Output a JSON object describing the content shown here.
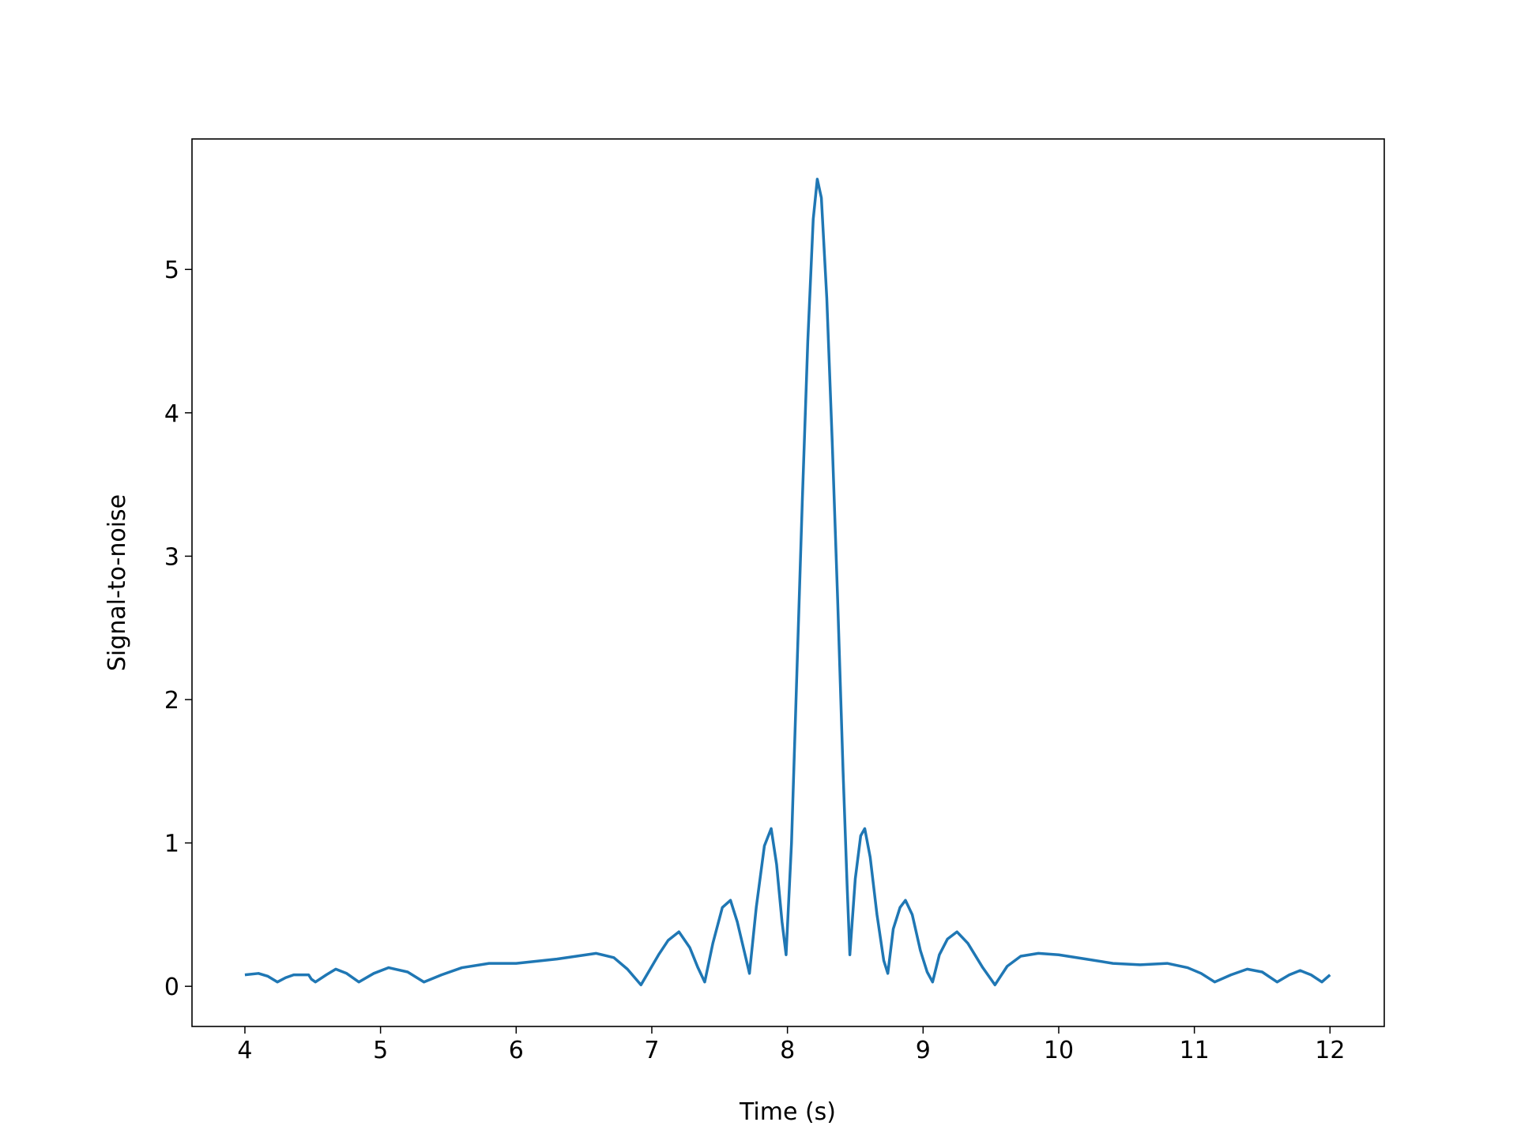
{
  "chart_data": {
    "type": "line",
    "xlabel": "Time (s)",
    "ylabel": "Signal-to-noise",
    "x": [
      4.0,
      4.1,
      4.17,
      4.24,
      4.3,
      4.36,
      4.47,
      4.49,
      4.52,
      4.6,
      4.67,
      4.75,
      4.84,
      4.95,
      5.06,
      5.2,
      5.32,
      5.45,
      5.6,
      5.8,
      6.0,
      6.3,
      6.59,
      6.72,
      6.82,
      6.92,
      7.05,
      7.12,
      7.2,
      7.28,
      7.34,
      7.39,
      7.45,
      7.52,
      7.58,
      7.63,
      7.68,
      7.72,
      7.77,
      7.83,
      7.88,
      7.92,
      7.96,
      7.99,
      8.03,
      8.07,
      8.11,
      8.15,
      8.19,
      8.22,
      8.25,
      8.29,
      8.33,
      8.37,
      8.41,
      8.44,
      8.46,
      8.5,
      8.54,
      8.57,
      8.61,
      8.66,
      8.71,
      8.74,
      8.78,
      8.83,
      8.87,
      8.92,
      8.98,
      9.03,
      9.07,
      9.12,
      9.18,
      9.25,
      9.33,
      9.44,
      9.53,
      9.62,
      9.72,
      9.85,
      10.0,
      10.2,
      10.4,
      10.6,
      10.8,
      10.95,
      11.05,
      11.15,
      11.27,
      11.39,
      11.5,
      11.61,
      11.7,
      11.78,
      11.86,
      11.94,
      12.0
    ],
    "series": [
      {
        "name": "snr",
        "color": "#1f77b4",
        "values": [
          0.08,
          0.09,
          0.07,
          0.03,
          0.06,
          0.08,
          0.08,
          0.05,
          0.03,
          0.08,
          0.12,
          0.09,
          0.03,
          0.09,
          0.13,
          0.1,
          0.03,
          0.08,
          0.13,
          0.16,
          0.16,
          0.19,
          0.23,
          0.2,
          0.12,
          0.01,
          0.22,
          0.32,
          0.38,
          0.27,
          0.13,
          0.03,
          0.3,
          0.55,
          0.6,
          0.45,
          0.25,
          0.09,
          0.55,
          0.98,
          1.1,
          0.85,
          0.45,
          0.22,
          1.0,
          2.2,
          3.4,
          4.5,
          5.35,
          5.63,
          5.5,
          4.8,
          3.8,
          2.7,
          1.5,
          0.7,
          0.22,
          0.75,
          1.05,
          1.1,
          0.9,
          0.5,
          0.18,
          0.09,
          0.4,
          0.55,
          0.6,
          0.5,
          0.25,
          0.1,
          0.03,
          0.22,
          0.33,
          0.38,
          0.3,
          0.13,
          0.01,
          0.14,
          0.21,
          0.23,
          0.22,
          0.19,
          0.16,
          0.15,
          0.16,
          0.13,
          0.09,
          0.03,
          0.08,
          0.12,
          0.1,
          0.03,
          0.08,
          0.11,
          0.08,
          0.03,
          0.08
        ]
      }
    ],
    "xlim": [
      3.61,
      12.4
    ],
    "ylim": [
      -0.28,
      5.91
    ],
    "xticks": [
      4,
      5,
      6,
      7,
      8,
      9,
      10,
      11,
      12
    ],
    "yticks": [
      0,
      1,
      2,
      3,
      4,
      5
    ]
  }
}
